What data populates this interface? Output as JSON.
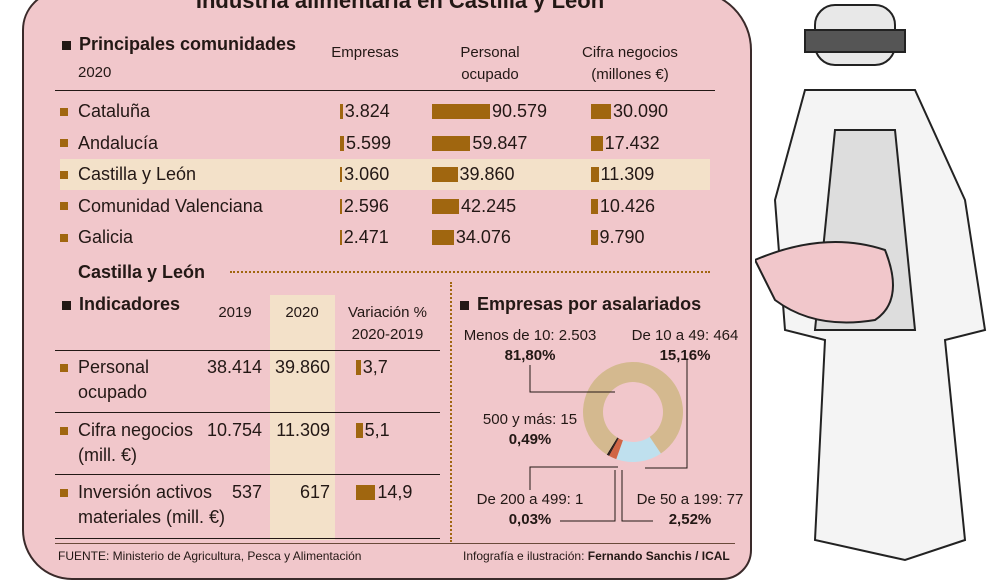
{
  "title": "Industria alimentaria en Castilla y León",
  "comunidades": {
    "heading": "Principales comunidades",
    "year": "2020",
    "columns": [
      "Empresas",
      "Personal ocupado",
      "Cifra negocios (millones €)"
    ],
    "col_personal": [
      "Personal",
      "ocupado"
    ],
    "col_cifra": [
      "Cifra negocios",
      "(millones €)"
    ],
    "rows": [
      {
        "name": "Cataluña",
        "empresas": "3.824",
        "personal": "90.579",
        "cifra": "30.090",
        "emp_v": 3824,
        "per_v": 90579,
        "cif_v": 30090
      },
      {
        "name": "Andalucía",
        "empresas": "5.599",
        "personal": "59.847",
        "cifra": "17.432",
        "emp_v": 5599,
        "per_v": 59847,
        "cif_v": 17432
      },
      {
        "name": "Castilla y León",
        "empresas": "3.060",
        "personal": "39.860",
        "cifra": "11.309",
        "emp_v": 3060,
        "per_v": 39860,
        "cif_v": 11309,
        "highlight": true
      },
      {
        "name": "Comunidad Valenciana",
        "empresas": "2.596",
        "personal": "42.245",
        "cifra": "10.426",
        "emp_v": 2596,
        "per_v": 42245,
        "cif_v": 10426
      },
      {
        "name": "Galicia",
        "empresas": "2.471",
        "personal": "34.076",
        "cifra": "9.790",
        "emp_v": 2471,
        "per_v": 34076,
        "cif_v": 9790
      }
    ]
  },
  "cyl": {
    "heading": "Castilla y León"
  },
  "indicadores": {
    "heading": "Indicadores",
    "col_2019": "2019",
    "col_2020": "2020",
    "col_var": [
      "Variación %",
      "2020-2019"
    ],
    "rows": [
      {
        "label": [
          "Personal",
          "ocupado"
        ],
        "v2019": "38.414",
        "v2020": "39.860",
        "var": "3,7",
        "var_v": 3.7
      },
      {
        "label": [
          "Cifra negocios",
          "(mill. €)"
        ],
        "v2019": "10.754",
        "v2020": "11.309",
        "var": "5,1",
        "var_v": 5.1
      },
      {
        "label": [
          "Inversión activos",
          "materiales (mill. €)"
        ],
        "v2019": "537",
        "v2020": "617",
        "var": "14,9",
        "var_v": 14.9
      }
    ]
  },
  "chart_data": {
    "type": "pie",
    "title": "Empresas por asalariados",
    "slices": [
      {
        "label": "De 10 a 49: 464",
        "pct": "15,16%",
        "value": 15.16,
        "color": "#bfe0ee"
      },
      {
        "label": "De 50 a 199: 77",
        "pct": "2,52%",
        "value": 2.52,
        "color": "#d06545"
      },
      {
        "label": "De 200 a 499: 1",
        "pct": "0,03%",
        "value": 0.03,
        "color": "#231815"
      },
      {
        "label": "500 y más: 15",
        "pct": "0,49%",
        "value": 0.49,
        "color": "#231815"
      },
      {
        "label": "Menos de 10: 2.503",
        "pct": "81,80%",
        "value": 81.8,
        "color": "#d4b98f"
      }
    ]
  },
  "footer": {
    "source": "FUENTE: Ministerio de Agricultura, Pesca y Alimentación",
    "credit_prefix": "Infografía e ilustración: ",
    "credit": "Fernando Sanchis / ICAL"
  },
  "colors": {
    "bar": "#a0660f",
    "highlight": "#f3e1c9",
    "background": "#f1c7cb"
  }
}
